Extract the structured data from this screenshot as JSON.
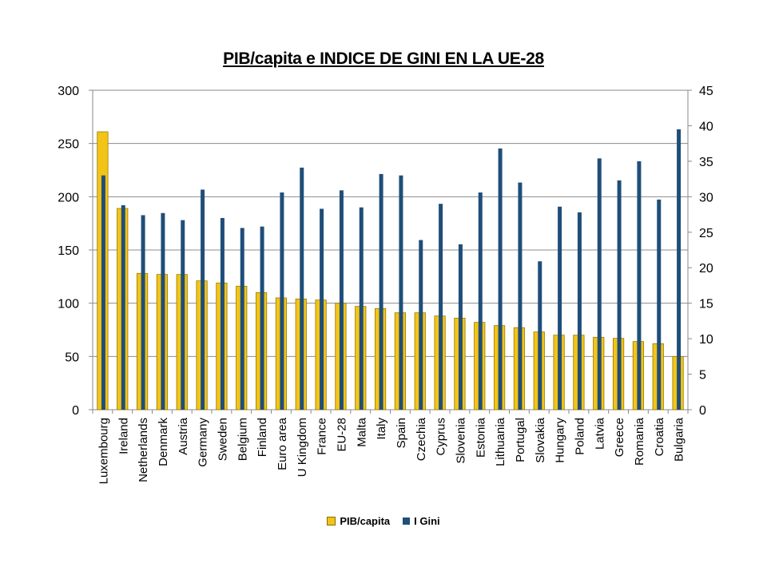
{
  "chart_data": {
    "type": "bar",
    "title": "PIB/capita e INDICE DE GINI EN LA UE-28",
    "categories": [
      "Luxembourg",
      "Ireland",
      "Netherlands",
      "Denmark",
      "Austria",
      "Germany",
      "Sweden",
      "Belgium",
      "Finland",
      "Euro area",
      "U Kingdom",
      "France",
      "EU-28",
      "Malta",
      "Italy",
      "Spain",
      "Czechia",
      "Cyprus",
      "Slovenia",
      "Estonia",
      "Lithuania",
      "Portugal",
      "Slovakia",
      "Hungary",
      "Poland",
      "Latvia",
      "Greece",
      "Romania",
      "Croatia",
      "Bulgaria"
    ],
    "series": [
      {
        "name": "PIB/capita",
        "axis": "left",
        "color": "#F2C418",
        "values": [
          261,
          189,
          128,
          127,
          127,
          121,
          119,
          116,
          110,
          105,
          104,
          103,
          100,
          97,
          95,
          91,
          91,
          88,
          86,
          82,
          79,
          77,
          73,
          70,
          70,
          68,
          67,
          64,
          62,
          50
        ]
      },
      {
        "name": "I Gini",
        "axis": "right",
        "color": "#1F4E79",
        "values": [
          33.0,
          28.8,
          27.4,
          27.7,
          26.7,
          31.0,
          27.0,
          25.6,
          25.8,
          30.6,
          34.1,
          28.3,
          30.9,
          28.5,
          33.2,
          33.0,
          23.9,
          29.0,
          23.3,
          30.6,
          36.8,
          32.0,
          20.9,
          28.6,
          27.8,
          35.4,
          32.3,
          35.0,
          29.6,
          39.5
        ]
      }
    ],
    "y_left": {
      "min": 0,
      "max": 300,
      "ticks": [
        "0",
        "50",
        "100",
        "150",
        "200",
        "250",
        "300"
      ]
    },
    "y_right": {
      "min": 0,
      "max": 45,
      "ticks": [
        "0",
        "5",
        "10",
        "15",
        "20",
        "25",
        "30",
        "35",
        "40",
        "45"
      ]
    },
    "grid": true,
    "legend_position": "bottom"
  },
  "legend": {
    "pib_label": "PIB/capita",
    "gini_label": "I Gini"
  }
}
